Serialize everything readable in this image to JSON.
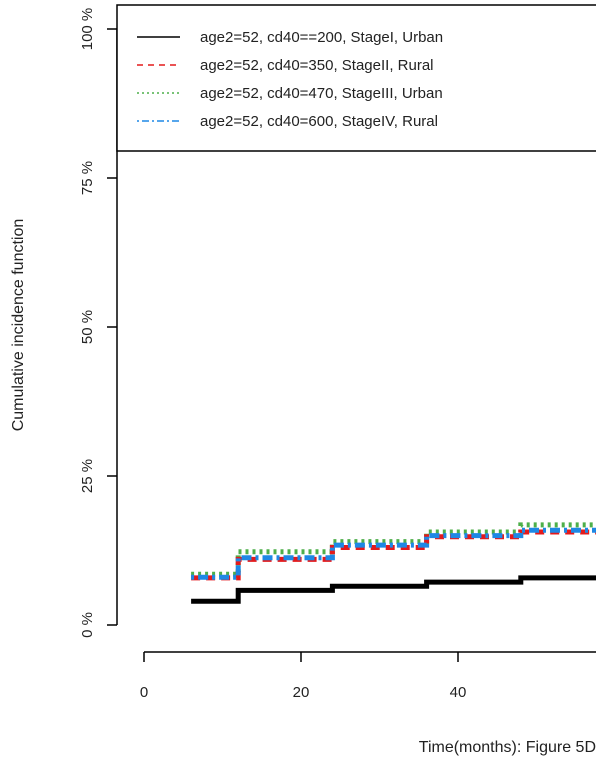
{
  "chart_data": {
    "type": "line",
    "step": true,
    "xlabel": "Time(months): Figure 5D",
    "ylabel": "Cumulative incidence function",
    "x_ticks": [
      "0",
      "20",
      "40"
    ],
    "y_ticks": [
      "0 %",
      "25 %",
      "50 %",
      "75 %",
      "100 %"
    ],
    "xlim": [
      0,
      58
    ],
    "ylim": [
      0,
      100
    ],
    "legend_position": "top",
    "series": [
      {
        "name": "age2=52,  cd40==200, StageI, Urban",
        "color": "#000000",
        "dash": "solid",
        "points": [
          [
            6,
            4.0
          ],
          [
            12,
            4.0
          ],
          [
            12,
            5.8
          ],
          [
            24,
            5.8
          ],
          [
            24,
            6.5
          ],
          [
            36,
            6.5
          ],
          [
            36,
            7.2
          ],
          [
            48,
            7.2
          ],
          [
            48,
            7.9
          ],
          [
            58,
            7.9
          ]
        ]
      },
      {
        "name": "age2=52, cd40=350, StageII, Rural",
        "color": "#e41a1c",
        "dash": "dashed",
        "points": [
          [
            6,
            7.9
          ],
          [
            12,
            7.9
          ],
          [
            12,
            11.0
          ],
          [
            24,
            11.0
          ],
          [
            24,
            13.0
          ],
          [
            36,
            13.0
          ],
          [
            36,
            14.8
          ],
          [
            48,
            14.8
          ],
          [
            48,
            15.6
          ],
          [
            58,
            15.6
          ]
        ]
      },
      {
        "name": "age2=52, cd40=470, StageIII, Urban",
        "color": "#4daf4a",
        "dash": "dotted",
        "points": [
          [
            6,
            8.5
          ],
          [
            12,
            8.5
          ],
          [
            12,
            12.3
          ],
          [
            24,
            12.3
          ],
          [
            24,
            14.0
          ],
          [
            36,
            14.0
          ],
          [
            36,
            15.6
          ],
          [
            48,
            15.6
          ],
          [
            48,
            16.8
          ],
          [
            58,
            16.8
          ]
        ]
      },
      {
        "name": "age2=52, cd40=600, StageIV, Rural",
        "color": "#1e88e5",
        "dash": "dotdash",
        "points": [
          [
            6,
            8.0
          ],
          [
            12,
            8.0
          ],
          [
            12,
            11.3
          ],
          [
            24,
            11.3
          ],
          [
            24,
            13.4
          ],
          [
            36,
            13.4
          ],
          [
            36,
            15.0
          ],
          [
            48,
            15.0
          ],
          [
            48,
            15.9
          ],
          [
            58,
            15.9
          ]
        ]
      }
    ]
  }
}
